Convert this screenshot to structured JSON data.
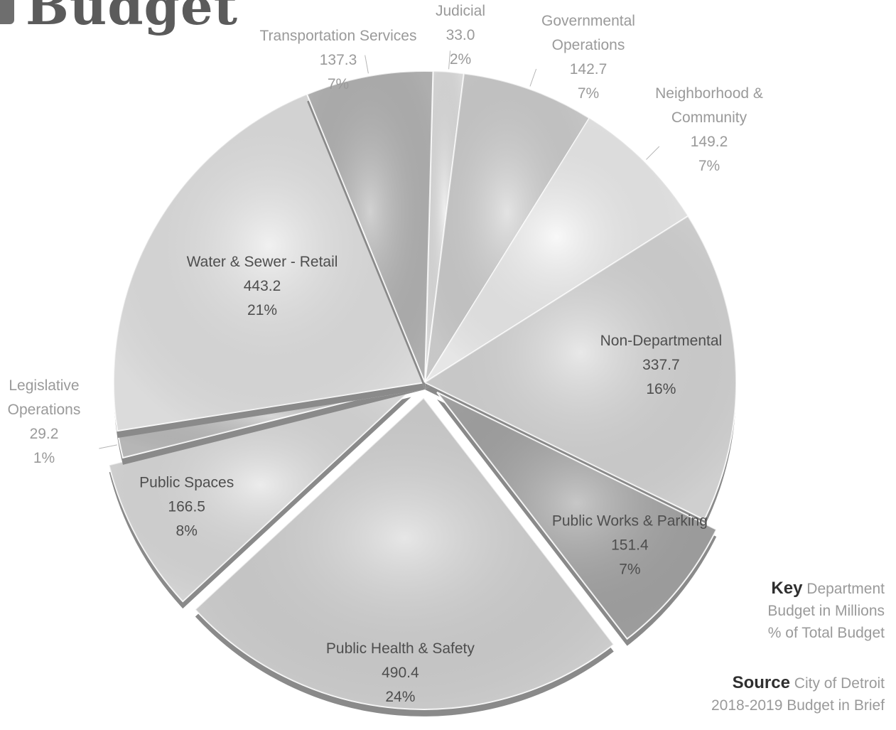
{
  "header": {
    "title": "Budget"
  },
  "key": {
    "heading": "Key",
    "line1": "Department",
    "line2": "Budget in Millions",
    "line3": "% of Total Budget"
  },
  "source": {
    "heading": "Source",
    "line1": "City of Detroit",
    "line2": "2018-2019 Budget in Brief"
  },
  "chart_data": {
    "type": "pie",
    "title": "Budget",
    "unit": "Millions",
    "slices": [
      {
        "label": "Judicial",
        "value": 33.0,
        "percent": "2%",
        "color": "#e6e6e6",
        "inside": false
      },
      {
        "label": "Governmental Operations",
        "lines": [
          "Governmental",
          "Operations"
        ],
        "value": 142.7,
        "display_value": "142.7",
        "percent": "7%",
        "color": "#d4d4d4",
        "inside": false
      },
      {
        "label": "Neighborhood & Community",
        "lines": [
          "Neighborhood &",
          "Community"
        ],
        "value": 149.2,
        "percent": "7%",
        "color": "#f5f5f5",
        "inside": false
      },
      {
        "label": "Non-Departmental",
        "value": 337.7,
        "percent": "16%",
        "color": "#dcdcdc",
        "inside": true
      },
      {
        "label": "Public Works & Parking",
        "value": 151.4,
        "percent": "7%",
        "color": "#a9a9a9",
        "inside": true,
        "exploded": true
      },
      {
        "label": "Public Health & Safety",
        "value": 490.4,
        "percent": "24%",
        "color": "#d9d9d9",
        "inside": true,
        "exploded": true
      },
      {
        "label": "Public Spaces",
        "value": 166.5,
        "percent": "8%",
        "color": "#e2e2e2",
        "inside": true,
        "exploded": true
      },
      {
        "label": "Legislative Operations",
        "lines": [
          "Legislative",
          "Operations"
        ],
        "value": 29.2,
        "percent": "1%",
        "color": "#c2c2c2",
        "inside": false
      },
      {
        "label": "Water & Sewer - Retail",
        "value": 443.2,
        "percent": "21%",
        "color": "#e9e9e9",
        "inside": true
      },
      {
        "label": "Transportation Services",
        "value": 137.3,
        "percent": "7%",
        "color": "#b9b9b9",
        "inside": false
      }
    ]
  }
}
